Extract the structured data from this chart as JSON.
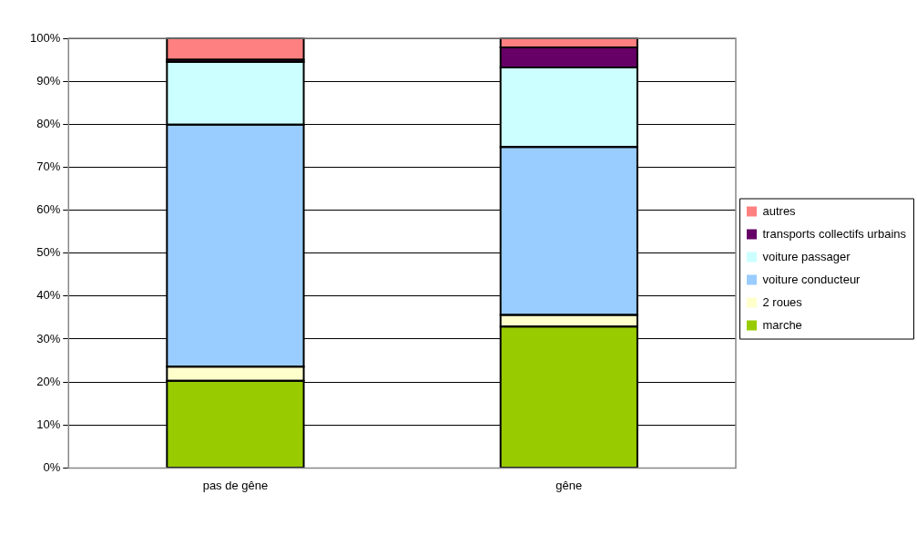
{
  "chart_data": {
    "type": "bar",
    "stacked": true,
    "categories": [
      "pas de gêne",
      "gêne"
    ],
    "series": [
      {
        "name": "marche",
        "color": "#99cc00",
        "values": [
          20.3,
          32.9
        ]
      },
      {
        "name": "2 roues",
        "color": "#ffffcc",
        "values": [
          3.3,
          2.7
        ]
      },
      {
        "name": "voiture conducteur",
        "color": "#99ccff",
        "values": [
          56.3,
          39.1
        ]
      },
      {
        "name": "voiture passager",
        "color": "#ccffff",
        "values": [
          14.6,
          18.5
        ]
      },
      {
        "name": "transports collectifs urbains",
        "color": "#660066",
        "values": [
          0.5,
          4.7
        ]
      },
      {
        "name": "autres",
        "color": "#ff8080",
        "values": [
          5.0,
          2.1
        ]
      }
    ],
    "ylim": [
      0,
      100
    ],
    "yticks": [
      {
        "value": 0,
        "label": "0%"
      },
      {
        "value": 10,
        "label": "10%"
      },
      {
        "value": 20,
        "label": "20%"
      },
      {
        "value": 30,
        "label": "30%"
      },
      {
        "value": 40,
        "label": "40%"
      },
      {
        "value": 50,
        "label": "50%"
      },
      {
        "value": 60,
        "label": "60%"
      },
      {
        "value": 70,
        "label": "70%"
      },
      {
        "value": 80,
        "label": "80%"
      },
      {
        "value": 90,
        "label": "90%"
      },
      {
        "value": 100,
        "label": "100%"
      }
    ],
    "grid": "y",
    "legend": "right"
  }
}
